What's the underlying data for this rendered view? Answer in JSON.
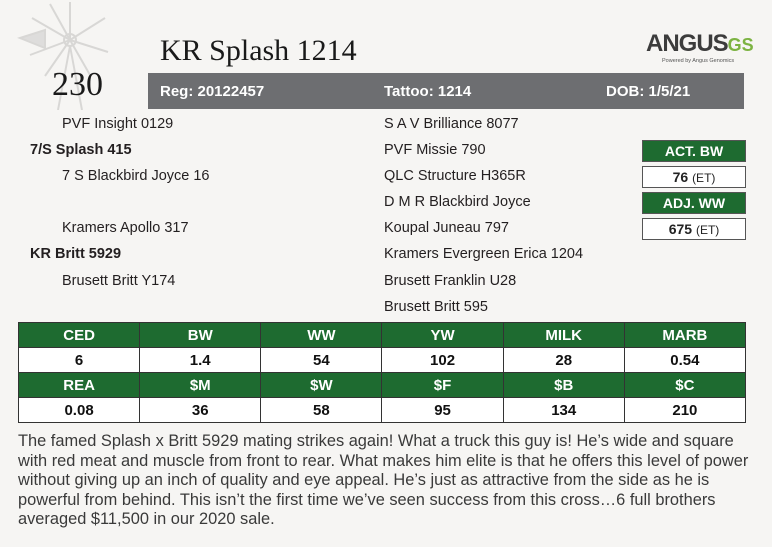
{
  "lot_number": "230",
  "bull_name": "KR Splash 1214",
  "logo": {
    "word": "ANGUS",
    "suffix": "GS",
    "tagline": "Powered by Angus Genomics"
  },
  "info_bar": {
    "reg": "Reg: 20122457",
    "tattoo": "Tattoo: 1214",
    "dob": "DOB: 1/5/21"
  },
  "pedigree_left": [
    "PVF Insight 0129",
    "7/S Splash 415",
    "7 S Blackbird Joyce 16",
    "Kramers Apollo 317",
    "KR Britt 5929",
    "Brusett Britt Y174"
  ],
  "pedigree_right": [
    "S A V Brilliance 8077",
    "PVF Missie 790",
    "QLC Structure H365R",
    "D M R Blackbird Joyce",
    "Koupal Juneau 797",
    "Kramers Evergreen Erica 1204",
    "Brusett Franklin U28",
    "Brusett Britt 595"
  ],
  "weights": {
    "act_bw_label": "ACT. BW",
    "act_bw_value": "76",
    "act_bw_note": "(ET)",
    "adj_ww_label": "ADJ. WW",
    "adj_ww_value": "675",
    "adj_ww_note": "(ET)"
  },
  "epds": {
    "row1_headers": [
      "CED",
      "BW",
      "WW",
      "YW",
      "MILK",
      "MARB"
    ],
    "row1_values": [
      "6",
      "1.4",
      "54",
      "102",
      "28",
      "0.54"
    ],
    "row2_headers": [
      "REA",
      "$M",
      "$W",
      "$F",
      "$B",
      "$C"
    ],
    "row2_values": [
      "0.08",
      "36",
      "58",
      "95",
      "134",
      "210"
    ]
  },
  "description": "The famed Splash x Britt 5929 mating strikes again! What a truck this guy is! He’s wide and square with red meat and muscle from front to rear. What makes him elite is that he offers this level of power without giving up an inch of quality and eye appeal. He’s just as attractive from the side as he is powerful from behind. This isn’t the first time we’ve seen success from this cross…6 full brothers averaged $11,500 in our 2020 sale.",
  "colors": {
    "green": "#1e6b30",
    "gray_bar": "#6d6e71",
    "logo_green": "#7cb342"
  }
}
